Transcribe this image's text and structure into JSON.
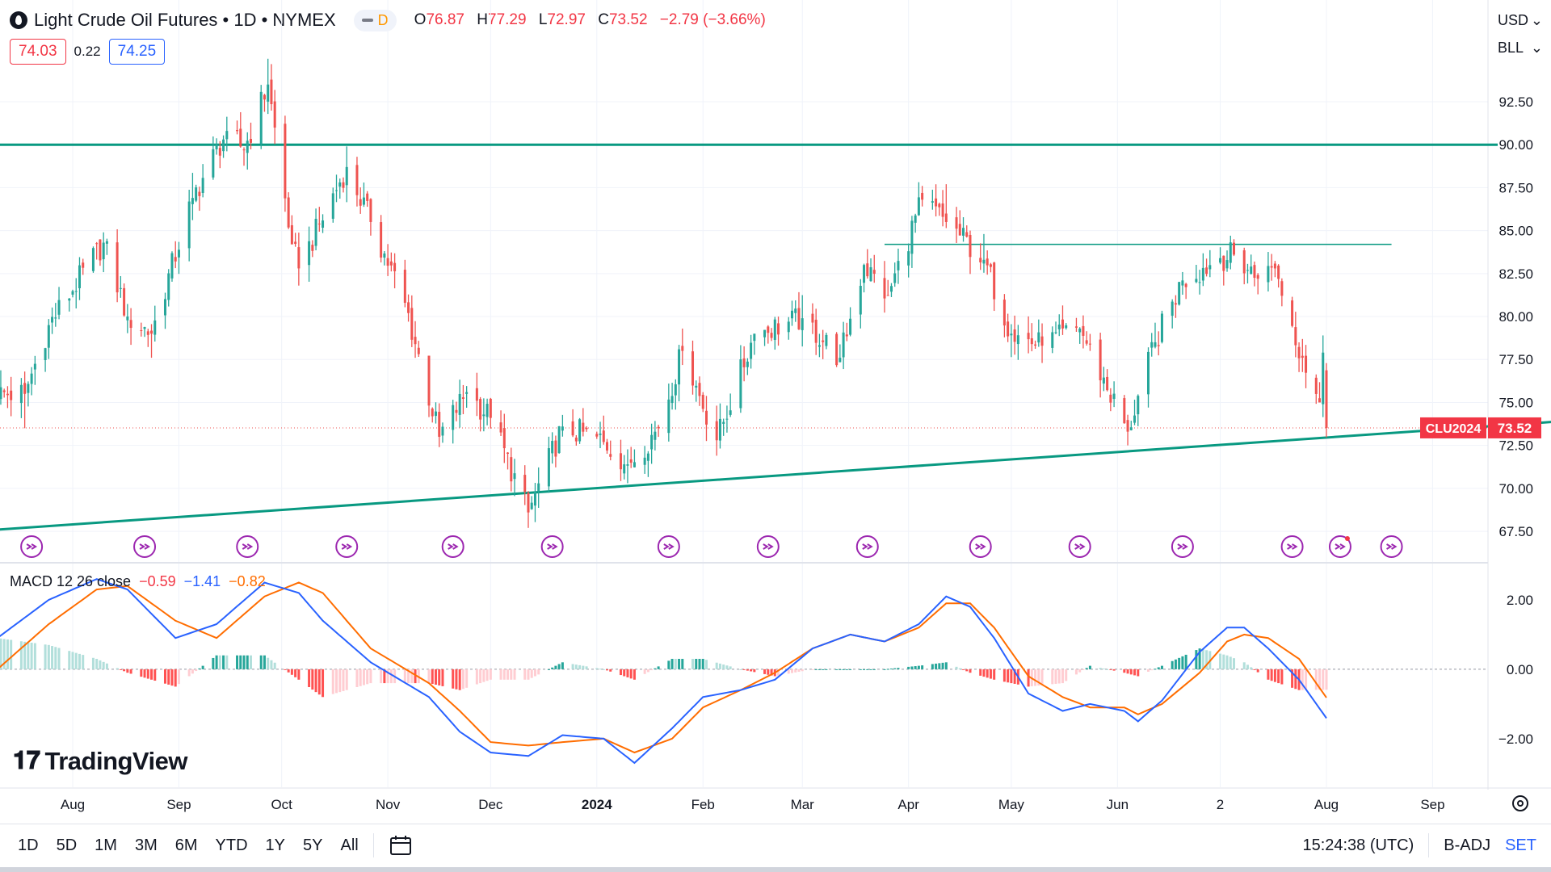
{
  "header": {
    "title": "Light Crude Oil Futures • 1D • NYMEX",
    "interval_badge": "D",
    "ohlc": [
      {
        "k": "O",
        "v": "76.87"
      },
      {
        "k": "H",
        "v": "77.29"
      },
      {
        "k": "L",
        "v": "72.97"
      },
      {
        "k": "C",
        "v": "73.52"
      }
    ],
    "change": "−2.79 (−3.66%)"
  },
  "quote": {
    "sell": "74.03",
    "spread": "0.22",
    "buy": "74.25"
  },
  "currency": {
    "currency": "USD",
    "unit": "BLL"
  },
  "macd_legend": {
    "label": "MACD 12 26 close",
    "hist": "−0.59",
    "macd": "−1.41",
    "signal": "−0.82"
  },
  "branding": {
    "logo_text": "TradingView"
  },
  "bottom_bar": {
    "timeframes": [
      "1D",
      "5D",
      "1M",
      "3M",
      "6M",
      "YTD",
      "1Y",
      "5Y",
      "All"
    ],
    "clock": "15:24:38 (UTC)",
    "adjust": "B-ADJ",
    "settlement": "SET"
  },
  "colors": {
    "up": "#26a69a",
    "down": "#ef5350",
    "macd": "#2962ff",
    "signal": "#ff6d00",
    "line": "#089981"
  },
  "chart_data": [
    {
      "type": "candlestick",
      "symbol_label": "CLU2024",
      "last_price": "73.52",
      "x_labels": [
        "Aug",
        "Sep",
        "Oct",
        "Nov",
        "Dec",
        "2024",
        "Feb",
        "Mar",
        "Apr",
        "May",
        "Jun",
        "2",
        "Aug",
        "Sep"
      ],
      "y_ticks": [
        "67.50",
        "70.00",
        "72.50",
        "75.00",
        "77.50",
        "80.00",
        "82.50",
        "85.00",
        "87.50",
        "90.00",
        "92.50"
      ],
      "ylim": [
        66.0,
        95.6
      ],
      "anchors": [
        {
          "date": "2023-07-18",
          "close": 75.5,
          "low": 73.5,
          "high": 76.8
        },
        {
          "date": "2023-07-25",
          "close": 79.5
        },
        {
          "date": "2023-08-10",
          "close": 84.3,
          "high": 84.9
        },
        {
          "date": "2023-08-17",
          "close": 80.0
        },
        {
          "date": "2023-08-24",
          "close": 79.0,
          "low": 77.6
        },
        {
          "date": "2023-09-05",
          "close": 86.9
        },
        {
          "date": "2023-09-15",
          "close": 90.8
        },
        {
          "date": "2023-09-20",
          "close": 89.7
        },
        {
          "date": "2023-09-27",
          "close": 93.5,
          "high": 95.0
        },
        {
          "date": "2023-10-04",
          "close": 84.2
        },
        {
          "date": "2023-10-06",
          "close": 82.8,
          "low": 81.8
        },
        {
          "date": "2023-10-20",
          "close": 88.7,
          "high": 89.9
        },
        {
          "date": "2023-10-27",
          "close": 85.5
        },
        {
          "date": "2023-11-06",
          "close": 80.8
        },
        {
          "date": "2023-11-16",
          "close": 73.0,
          "low": 72.4
        },
        {
          "date": "2023-11-24",
          "close": 75.6
        },
        {
          "date": "2023-12-01",
          "close": 74.1
        },
        {
          "date": "2023-12-12",
          "close": 68.6,
          "low": 67.7
        },
        {
          "date": "2023-12-22",
          "close": 73.6
        },
        {
          "date": "2024-01-03",
          "close": 72.7
        },
        {
          "date": "2024-01-10",
          "close": 71.4,
          "low": 70.3
        },
        {
          "date": "2024-01-19",
          "close": 73.5
        },
        {
          "date": "2024-01-26",
          "close": 78.0,
          "high": 79.3
        },
        {
          "date": "2024-02-05",
          "close": 72.8,
          "low": 71.9
        },
        {
          "date": "2024-02-16",
          "close": 79.0
        },
        {
          "date": "2024-03-01",
          "close": 79.9
        },
        {
          "date": "2024-03-12",
          "close": 77.6
        },
        {
          "date": "2024-03-19",
          "close": 83.0
        },
        {
          "date": "2024-03-26",
          "close": 81.2
        },
        {
          "date": "2024-04-05",
          "close": 86.8,
          "high": 87.6
        },
        {
          "date": "2024-04-12",
          "close": 85.5,
          "high": 87.7
        },
        {
          "date": "2024-04-23",
          "close": 83.3
        },
        {
          "date": "2024-05-01",
          "close": 79.0
        },
        {
          "date": "2024-05-10",
          "close": 78.3
        },
        {
          "date": "2024-05-21",
          "close": 79.3
        },
        {
          "date": "2024-06-04",
          "close": 73.3,
          "low": 72.5
        },
        {
          "date": "2024-06-12",
          "close": 78.5
        },
        {
          "date": "2024-06-20",
          "close": 82.1
        },
        {
          "date": "2024-07-01",
          "close": 83.4
        },
        {
          "date": "2024-07-05",
          "close": 83.6,
          "high": 84.5
        },
        {
          "date": "2024-07-12",
          "close": 82.2
        },
        {
          "date": "2024-07-17",
          "close": 82.8
        },
        {
          "date": "2024-07-25",
          "close": 77.6
        },
        {
          "date": "2024-07-30",
          "close": 75.0
        },
        {
          "date": "2024-07-31",
          "close": 77.9,
          "high": 78.9
        },
        {
          "date": "2024-08-01",
          "open": 76.87,
          "high": 77.29,
          "low": 72.97,
          "close": 73.52
        }
      ],
      "horizontal_lines": [
        {
          "price": 90.0,
          "from": "2023-07-10",
          "to": "2024-09-20"
        },
        {
          "price": 84.2,
          "from": "2024-03-25",
          "to": "2024-08-20"
        }
      ],
      "trend_line": {
        "from": {
          "date": "2023-07-10",
          "price": 67.6
        },
        "to": {
          "date": "2024-10-30",
          "price": 74.2
        }
      },
      "grid": true
    },
    {
      "type": "macd",
      "title": "MACD 12 26 close",
      "y_ticks": [
        "2.00",
        "0.00",
        "−2.00"
      ],
      "ylim": [
        -3.4,
        3.0
      ],
      "macd": [
        [
          "2023-07-10",
          0.9
        ],
        [
          "2023-07-25",
          2.0
        ],
        [
          "2023-08-08",
          2.6
        ],
        [
          "2023-08-17",
          2.3
        ],
        [
          "2023-08-31",
          0.9
        ],
        [
          "2023-09-12",
          1.3
        ],
        [
          "2023-09-26",
          2.5
        ],
        [
          "2023-10-06",
          2.2
        ],
        [
          "2023-10-13",
          1.4
        ],
        [
          "2023-10-27",
          0.2
        ],
        [
          "2023-11-13",
          -0.8
        ],
        [
          "2023-11-22",
          -1.8
        ],
        [
          "2023-12-01",
          -2.4
        ],
        [
          "2023-12-12",
          -2.5
        ],
        [
          "2023-12-22",
          -1.9
        ],
        [
          "2024-01-03",
          -2.0
        ],
        [
          "2024-01-12",
          -2.7
        ],
        [
          "2024-01-23",
          -1.7
        ],
        [
          "2024-02-01",
          -0.8
        ],
        [
          "2024-02-12",
          -0.6
        ],
        [
          "2024-02-22",
          -0.3
        ],
        [
          "2024-03-04",
          0.6
        ],
        [
          "2024-03-15",
          1.0
        ],
        [
          "2024-03-25",
          0.8
        ],
        [
          "2024-04-04",
          1.3
        ],
        [
          "2024-04-12",
          2.1
        ],
        [
          "2024-04-19",
          1.8
        ],
        [
          "2024-04-26",
          0.9
        ],
        [
          "2024-05-06",
          -0.7
        ],
        [
          "2024-05-16",
          -1.2
        ],
        [
          "2024-05-24",
          -1.0
        ],
        [
          "2024-06-03",
          -1.2
        ],
        [
          "2024-06-07",
          -1.5
        ],
        [
          "2024-06-14",
          -0.9
        ],
        [
          "2024-06-25",
          0.5
        ],
        [
          "2024-07-03",
          1.2
        ],
        [
          "2024-07-08",
          1.2
        ],
        [
          "2024-07-15",
          0.6
        ],
        [
          "2024-07-24",
          -0.3
        ],
        [
          "2024-08-01",
          -1.41
        ]
      ],
      "signal": [
        [
          "2023-07-10",
          0.0
        ],
        [
          "2023-07-25",
          1.3
        ],
        [
          "2023-08-08",
          2.3
        ],
        [
          "2023-08-17",
          2.4
        ],
        [
          "2023-08-31",
          1.4
        ],
        [
          "2023-09-12",
          0.9
        ],
        [
          "2023-09-26",
          2.1
        ],
        [
          "2023-10-06",
          2.5
        ],
        [
          "2023-10-13",
          2.2
        ],
        [
          "2023-10-27",
          0.6
        ],
        [
          "2023-11-13",
          -0.4
        ],
        [
          "2023-11-22",
          -1.2
        ],
        [
          "2023-12-01",
          -2.1
        ],
        [
          "2023-12-12",
          -2.2
        ],
        [
          "2023-12-22",
          -2.1
        ],
        [
          "2024-01-03",
          -2.0
        ],
        [
          "2024-01-12",
          -2.4
        ],
        [
          "2024-01-23",
          -2.0
        ],
        [
          "2024-02-01",
          -1.1
        ],
        [
          "2024-02-12",
          -0.6
        ],
        [
          "2024-02-22",
          -0.1
        ],
        [
          "2024-03-04",
          0.6
        ],
        [
          "2024-03-15",
          1.0
        ],
        [
          "2024-03-25",
          0.8
        ],
        [
          "2024-04-04",
          1.2
        ],
        [
          "2024-04-12",
          1.9
        ],
        [
          "2024-04-19",
          1.9
        ],
        [
          "2024-04-26",
          1.2
        ],
        [
          "2024-05-06",
          -0.2
        ],
        [
          "2024-05-16",
          -0.8
        ],
        [
          "2024-05-24",
          -1.1
        ],
        [
          "2024-06-03",
          -1.1
        ],
        [
          "2024-06-07",
          -1.3
        ],
        [
          "2024-06-14",
          -1.0
        ],
        [
          "2024-06-25",
          -0.1
        ],
        [
          "2024-07-03",
          0.8
        ],
        [
          "2024-07-08",
          1.0
        ],
        [
          "2024-07-15",
          0.9
        ],
        [
          "2024-07-24",
          0.3
        ],
        [
          "2024-08-01",
          -0.82
        ]
      ],
      "histogram_last": -0.59
    }
  ]
}
